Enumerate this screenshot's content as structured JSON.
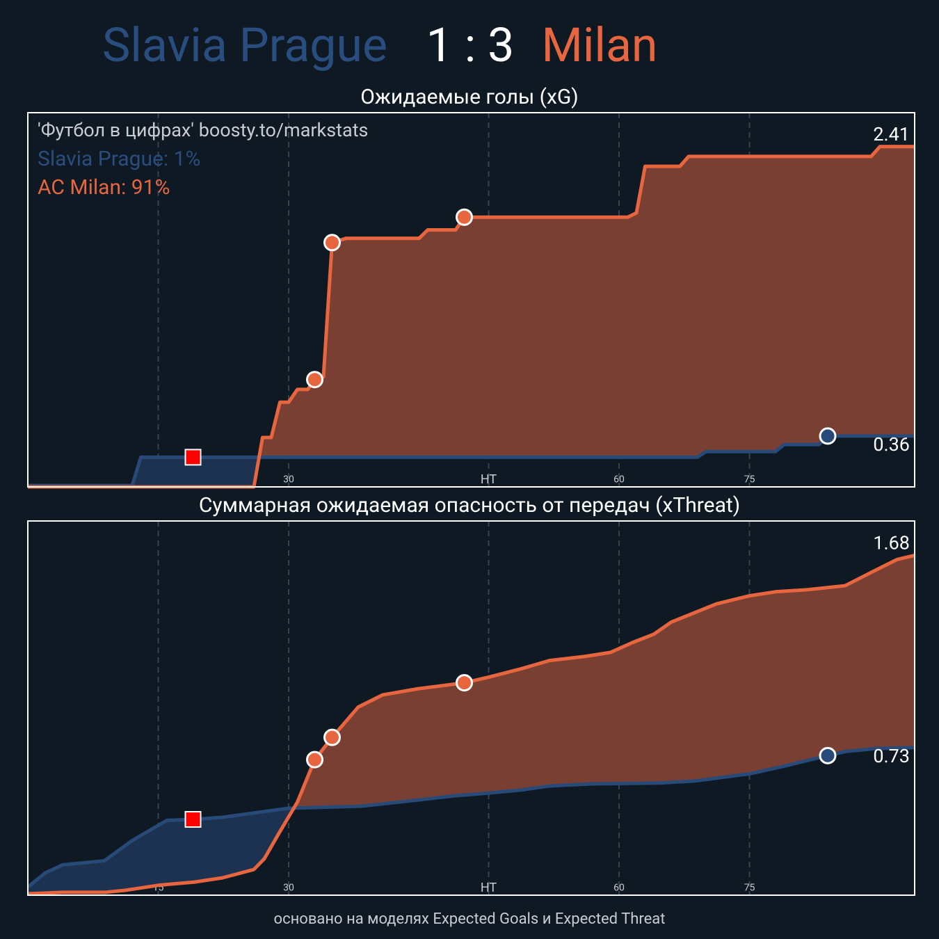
{
  "header": {
    "home": "Slavia Prague",
    "score": "1 : 3",
    "away": "Milan"
  },
  "footer": "основано на моделях Expected Goals и Expected Threat",
  "chart_data": [
    {
      "type": "line",
      "title": "Ожидаемые голы (xG)",
      "annotations": [
        "'Футбол в цифрах' boosty.to/markstats",
        "Slavia Prague: 1%",
        "AC Milan: 91%"
      ],
      "annotation_colors": [
        "#c9ccd0",
        "#2a4d7f",
        "#e8663f"
      ],
      "xlim": [
        0,
        102
      ],
      "ylim": [
        0,
        2.65
      ],
      "grid": true,
      "xticks": [
        15,
        30,
        {
          "value": 53,
          "label": "HT"
        },
        {
          "value": 68,
          "label": "60"
        },
        {
          "value": 83,
          "label": "75"
        }
      ],
      "series": [
        {
          "color": "#274a78",
          "fill": "#1d3150",
          "x": [
            0,
            12,
            13,
            77,
            78,
            86,
            87,
            91,
            92,
            102
          ],
          "values": [
            0.01,
            0.01,
            0.21,
            0.21,
            0.25,
            0.25,
            0.3,
            0.3,
            0.36,
            0.36
          ],
          "goals": [
            92
          ],
          "red_cards": [
            19
          ]
        },
        {
          "color": "#e8663f",
          "fill": "#7a3f33",
          "x": [
            0,
            26,
            27,
            28,
            29,
            30,
            31,
            32.2,
            33,
            34,
            35,
            36.6,
            45,
            46,
            49.2,
            50.2,
            69,
            70,
            71,
            75,
            76,
            97,
            98,
            102
          ],
          "values": [
            0,
            0,
            0.35,
            0.35,
            0.6,
            0.6,
            0.69,
            0.69,
            0.76,
            0.78,
            1.73,
            1.76,
            1.76,
            1.82,
            1.82,
            1.91,
            1.91,
            1.94,
            2.27,
            2.27,
            2.34,
            2.34,
            2.41,
            2.41
          ],
          "goals": [
            33,
            35,
            50.2
          ],
          "red_cards": []
        }
      ]
    },
    {
      "type": "line",
      "title": "Суммарная ожидаемая опасность от передач (xThreat)",
      "xlim": [
        0,
        102
      ],
      "ylim": [
        0,
        1.85
      ],
      "grid": true,
      "xticks": [
        15,
        30,
        {
          "value": 53,
          "label": "HT"
        },
        {
          "value": 68,
          "label": "60"
        },
        {
          "value": 83,
          "label": "75"
        }
      ],
      "series": [
        {
          "color": "#274a78",
          "fill": "#1d3150",
          "x": [
            0,
            2,
            4,
            8.8,
            12,
            16,
            19.2,
            22.4,
            30,
            34.4,
            38.4,
            44.8,
            48.8,
            53,
            56.8,
            60,
            64.8,
            72.8,
            76.8,
            83,
            87.2,
            92,
            94,
            97.6,
            102
          ],
          "values": [
            0.04,
            0.11,
            0.15,
            0.17,
            0.27,
            0.37,
            0.375,
            0.385,
            0.43,
            0.435,
            0.44,
            0.47,
            0.49,
            0.505,
            0.52,
            0.54,
            0.55,
            0.555,
            0.565,
            0.6,
            0.64,
            0.69,
            0.71,
            0.725,
            0.73
          ],
          "goals": [
            92
          ],
          "red_cards": [
            19
          ]
        },
        {
          "color": "#e8663f",
          "fill": "#7a3f33",
          "x": [
            0,
            4,
            8.8,
            11.2,
            15.2,
            19.2,
            22.4,
            26,
            27.2,
            28.8,
            31,
            33,
            35,
            38,
            40.8,
            44.8,
            50.2,
            53.2,
            56.8,
            60,
            64,
            67,
            69.6,
            72,
            74,
            79.2,
            83,
            86,
            89.6,
            94,
            97.2,
            100,
            102
          ],
          "values": [
            0.007,
            0.014,
            0.014,
            0.024,
            0.05,
            0.065,
            0.086,
            0.127,
            0.18,
            0.3,
            0.46,
            0.67,
            0.78,
            0.93,
            0.99,
            1.02,
            1.05,
            1.08,
            1.12,
            1.16,
            1.18,
            1.2,
            1.25,
            1.29,
            1.35,
            1.44,
            1.48,
            1.5,
            1.51,
            1.53,
            1.6,
            1.66,
            1.68
          ],
          "goals": [
            33,
            35,
            50.2
          ],
          "red_cards": []
        }
      ]
    }
  ]
}
